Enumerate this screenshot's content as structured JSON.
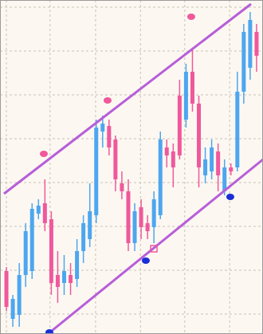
{
  "chart_data": {
    "type": "candlestick",
    "up_color": "#4da6f0",
    "down_color": "#f0589c",
    "channel_color": "#b85ed9",
    "background": "#fcf8f1",
    "xlim": [
      -1,
      40
    ],
    "ylim": [
      0,
      419
    ],
    "xticks": [
      0,
      6.8,
      13.9,
      20.9,
      27.8,
      34.8
    ],
    "yticks": [
      25,
      80,
      135,
      190,
      245,
      300,
      355,
      410
    ],
    "grid": true,
    "open": [
      79,
      19,
      24,
      74,
      79,
      151,
      164,
      144,
      74,
      64,
      74,
      69,
      104,
      119,
      149,
      254,
      261,
      244,
      189,
      179,
      114,
      159,
      139,
      134,
      149,
      234,
      229,
      299,
      269,
      329,
      289,
      199,
      204,
      229,
      179,
      209,
      209,
      304,
      334,
      379
    ],
    "high": [
      84,
      49,
      89,
      139,
      164,
      169,
      194,
      154,
      104,
      99,
      89,
      119,
      149,
      189,
      269,
      274,
      269,
      249,
      204,
      194,
      164,
      169,
      149,
      179,
      254,
      244,
      239,
      319,
      339,
      359,
      299,
      234,
      244,
      239,
      219,
      214,
      329,
      389,
      404,
      389
    ],
    "low": [
      29,
      9,
      9,
      59,
      69,
      144,
      129,
      49,
      39,
      49,
      49,
      59,
      89,
      109,
      139,
      234,
      224,
      179,
      169,
      104,
      104,
      119,
      119,
      114,
      144,
      209,
      184,
      219,
      259,
      279,
      184,
      189,
      194,
      179,
      174,
      199,
      204,
      289,
      319,
      329
    ],
    "close": [
      34,
      44,
      74,
      129,
      157,
      161,
      139,
      64,
      59,
      79,
      64,
      104,
      139,
      154,
      259,
      264,
      234,
      194,
      179,
      114,
      154,
      134,
      129,
      169,
      244,
      224,
      209,
      224,
      329,
      289,
      209,
      219,
      234,
      199,
      209,
      204,
      304,
      379,
      394,
      349
    ],
    "markers": [
      {
        "x": 5.83,
        "y": 226,
        "color": "#f0589c",
        "shape": "dot"
      },
      {
        "x": 15.77,
        "y": 293,
        "color": "#f0589c",
        "shape": "dot"
      },
      {
        "x": 28.81,
        "y": 398,
        "color": "#f0589c",
        "shape": "dot"
      },
      {
        "x": 21.73,
        "y": 92,
        "color": "#1a2fd6",
        "shape": "dot"
      },
      {
        "x": 34.9,
        "y": 172,
        "color": "#1a2fd6",
        "shape": "dot"
      },
      {
        "x": 6.7,
        "y": 2,
        "color": "#1a2fd6",
        "shape": "dot"
      },
      {
        "x": 22.98,
        "y": 107,
        "color": "#f0589c",
        "shape": "square"
      }
    ],
    "channels": [
      {
        "x": [
          -0.38,
          38.13
        ],
        "y": [
          176,
          414
        ]
      },
      {
        "x": [
          6.45,
          40
        ],
        "y": [
          0,
          219
        ]
      }
    ]
  }
}
